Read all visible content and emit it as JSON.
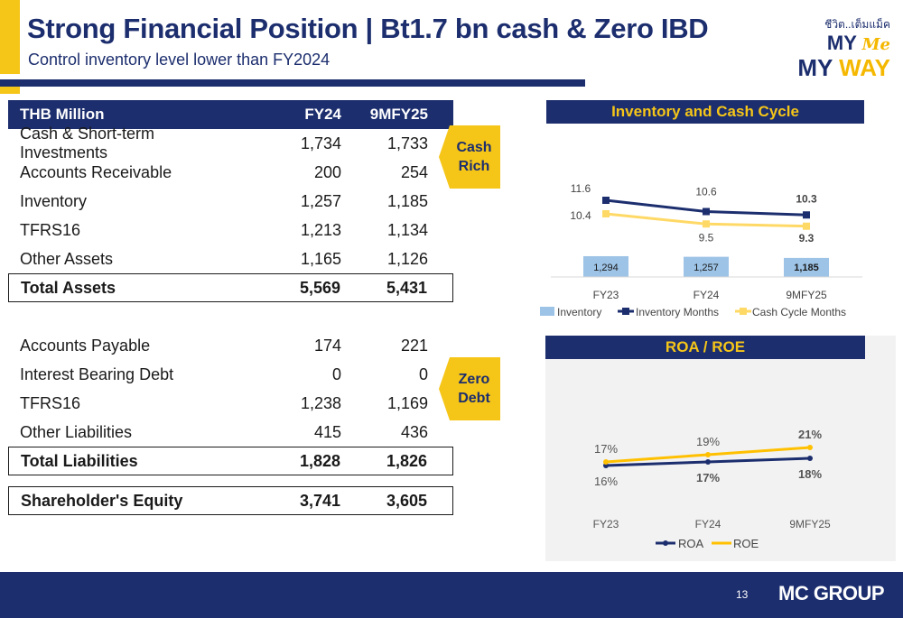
{
  "header": {
    "title": "Strong Financial Position | Bt1.7 bn cash & Zero IBD",
    "subtitle": "Control inventory level lower than FY2024"
  },
  "logo": {
    "thai": "ชีวิต..เต็มแม็ค",
    "my": "MY",
    "me": "Me",
    "my2": "MY",
    "way": "WAY"
  },
  "table": {
    "headers": [
      "THB Million",
      "FY24",
      "9MFY25"
    ],
    "assets": [
      [
        "Cash & Short-term Investments",
        "1,734",
        "1,733"
      ],
      [
        "Accounts Receivable",
        "200",
        "254"
      ],
      [
        "Inventory",
        "1,257",
        "1,185"
      ],
      [
        "TFRS16",
        "1,213",
        "1,134"
      ],
      [
        "Other Assets",
        "1,165",
        "1,126"
      ]
    ],
    "total_assets": [
      "Total Assets",
      "5,569",
      "5,431"
    ],
    "liabilities": [
      [
        "Accounts Payable",
        "174",
        "221"
      ],
      [
        "Interest Bearing Debt",
        "0",
        "0"
      ],
      [
        "TFRS16",
        "1,238",
        "1,169"
      ],
      [
        "Other Liabilities",
        "415",
        "436"
      ]
    ],
    "total_liabilities": [
      "Total Liabilities",
      "1,828",
      "1,826"
    ],
    "equity": [
      "Shareholder's Equity",
      "3,741",
      "3,605"
    ]
  },
  "callouts": {
    "cash_line1": "Cash",
    "cash_line2": "Rich",
    "zero_line1": "Zero",
    "zero_line2": "Debt"
  },
  "chart_data": [
    {
      "type": "bar",
      "title": "Inventory and Cash Cycle",
      "categories": [
        "FY23",
        "FY24",
        "9MFY25"
      ],
      "series": [
        {
          "name": "Inventory",
          "kind": "bar",
          "values": [
            1294,
            1257,
            1185
          ],
          "labels": [
            "1,294",
            "1,257",
            "1,185"
          ],
          "color": "#9dc3e6"
        },
        {
          "name": "Inventory Months",
          "kind": "line",
          "values": [
            11.6,
            10.6,
            10.3
          ],
          "color": "#1c2e6e"
        },
        {
          "name": "Cash Cycle Months",
          "kind": "line",
          "values": [
            10.4,
            9.5,
            9.3
          ],
          "color": "#ffd966"
        }
      ],
      "legend": "bottom"
    },
    {
      "type": "line",
      "title": "ROA / ROE",
      "categories": [
        "FY23",
        "FY24",
        "9MFY25"
      ],
      "series": [
        {
          "name": "ROA",
          "values": [
            16,
            17,
            18
          ],
          "labels": [
            "16%",
            "17%",
            "18%"
          ],
          "color": "#1c2e6e"
        },
        {
          "name": "ROE",
          "values": [
            17,
            19,
            21
          ],
          "labels": [
            "17%",
            "19%",
            "21%"
          ],
          "color": "#ffc000"
        }
      ],
      "legend": "bottom"
    }
  ],
  "footer": {
    "page": "13",
    "brand": "MC GROUP"
  }
}
